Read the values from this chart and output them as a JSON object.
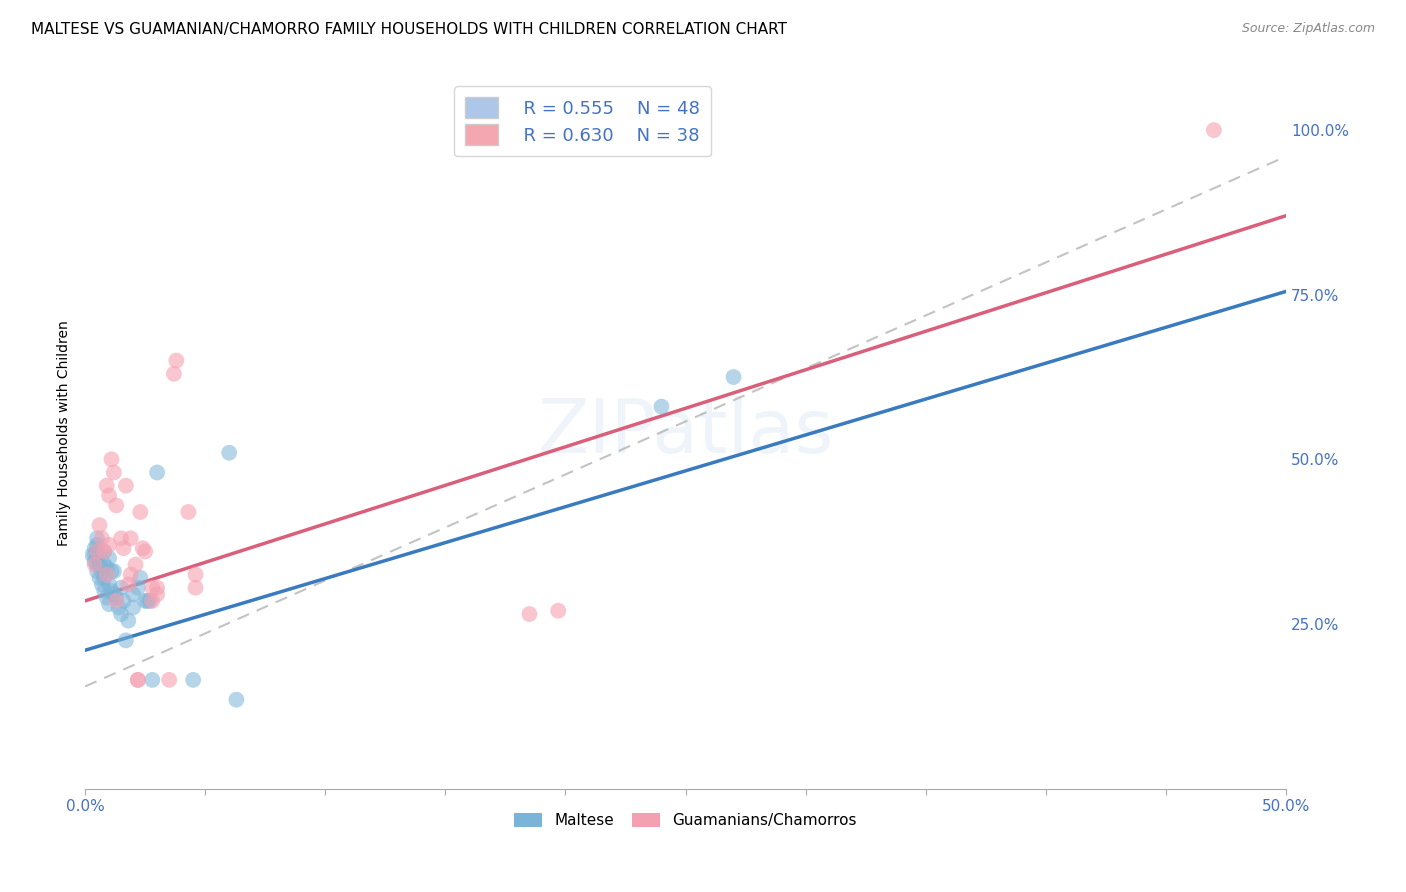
{
  "title": "MALTESE VS GUAMANIAN/CHAMORRO FAMILY HOUSEHOLDS WITH CHILDREN CORRELATION CHART",
  "source": "Source: ZipAtlas.com",
  "ylabel": "Family Households with Children",
  "xlim": [
    0.0,
    0.5
  ],
  "ylim": [
    0.0,
    1.08
  ],
  "xtick_positions": [
    0.0,
    0.05,
    0.1,
    0.15,
    0.2,
    0.25,
    0.3,
    0.35,
    0.4,
    0.45,
    0.5
  ],
  "xticklabels": [
    "0.0%",
    "",
    "",
    "",
    "",
    "",
    "",
    "",
    "",
    "",
    "50.0%"
  ],
  "yticks_right": [
    0.25,
    0.5,
    0.75,
    1.0
  ],
  "yticklabels_right": [
    "25.0%",
    "50.0%",
    "75.0%",
    "100.0%"
  ],
  "legend_blue_r": "R = 0.555",
  "legend_blue_n": "N = 48",
  "legend_pink_r": "R = 0.630",
  "legend_pink_n": "N = 38",
  "blue_scatter_color": "#7ab4d8",
  "pink_scatter_color": "#f5a0b0",
  "blue_line_color": "#3a7bbf",
  "pink_line_color": "#d95f7a",
  "gray_dash_color": "#aaaaaa",
  "watermark": "ZIPatlas",
  "blue_scatter_x": [
    0.003,
    0.004,
    0.004,
    0.004,
    0.005,
    0.005,
    0.005,
    0.005,
    0.005,
    0.005,
    0.006,
    0.006,
    0.007,
    0.007,
    0.008,
    0.008,
    0.008,
    0.008,
    0.009,
    0.009,
    0.01,
    0.01,
    0.01,
    0.011,
    0.011,
    0.012,
    0.012,
    0.013,
    0.014,
    0.015,
    0.015,
    0.016,
    0.017,
    0.018,
    0.02,
    0.02,
    0.022,
    0.023,
    0.025,
    0.026,
    0.027,
    0.028,
    0.03,
    0.045,
    0.06,
    0.063,
    0.24,
    0.27
  ],
  "blue_scatter_y": [
    0.355,
    0.345,
    0.355,
    0.365,
    0.33,
    0.34,
    0.35,
    0.36,
    0.37,
    0.38,
    0.32,
    0.34,
    0.31,
    0.33,
    0.3,
    0.32,
    0.34,
    0.36,
    0.29,
    0.335,
    0.28,
    0.31,
    0.35,
    0.3,
    0.33,
    0.295,
    0.33,
    0.29,
    0.275,
    0.265,
    0.305,
    0.285,
    0.225,
    0.255,
    0.275,
    0.295,
    0.305,
    0.32,
    0.285,
    0.285,
    0.285,
    0.165,
    0.48,
    0.165,
    0.51,
    0.135,
    0.58,
    0.625
  ],
  "pink_scatter_x": [
    0.004,
    0.005,
    0.006,
    0.007,
    0.008,
    0.009,
    0.009,
    0.01,
    0.01,
    0.011,
    0.012,
    0.013,
    0.013,
    0.015,
    0.016,
    0.017,
    0.018,
    0.019,
    0.019,
    0.021,
    0.022,
    0.022,
    0.023,
    0.024,
    0.025,
    0.028,
    0.028,
    0.03,
    0.03,
    0.035,
    0.037,
    0.038,
    0.043,
    0.046,
    0.046,
    0.185,
    0.197,
    0.47
  ],
  "pink_scatter_y": [
    0.34,
    0.36,
    0.4,
    0.38,
    0.36,
    0.325,
    0.46,
    0.445,
    0.37,
    0.5,
    0.48,
    0.43,
    0.285,
    0.38,
    0.365,
    0.46,
    0.31,
    0.325,
    0.38,
    0.34,
    0.165,
    0.165,
    0.42,
    0.365,
    0.36,
    0.285,
    0.305,
    0.295,
    0.305,
    0.165,
    0.63,
    0.65,
    0.42,
    0.305,
    0.325,
    0.265,
    0.27,
    1.0
  ],
  "blue_line_x": [
    0.0,
    0.5
  ],
  "blue_line_y": [
    0.21,
    0.755
  ],
  "pink_line_x": [
    0.0,
    0.5
  ],
  "pink_line_y": [
    0.285,
    0.87
  ],
  "gray_line_x": [
    0.0,
    0.5
  ],
  "gray_line_y": [
    0.155,
    0.96
  ],
  "grid_color": "#d0d0d0",
  "bg_color": "#ffffff",
  "title_fontsize": 11,
  "tick_fontsize": 11,
  "tick_color": "#4472c4",
  "legend_box_color_blue": "#aec6e8",
  "legend_box_color_pink": "#f4a7b0"
}
